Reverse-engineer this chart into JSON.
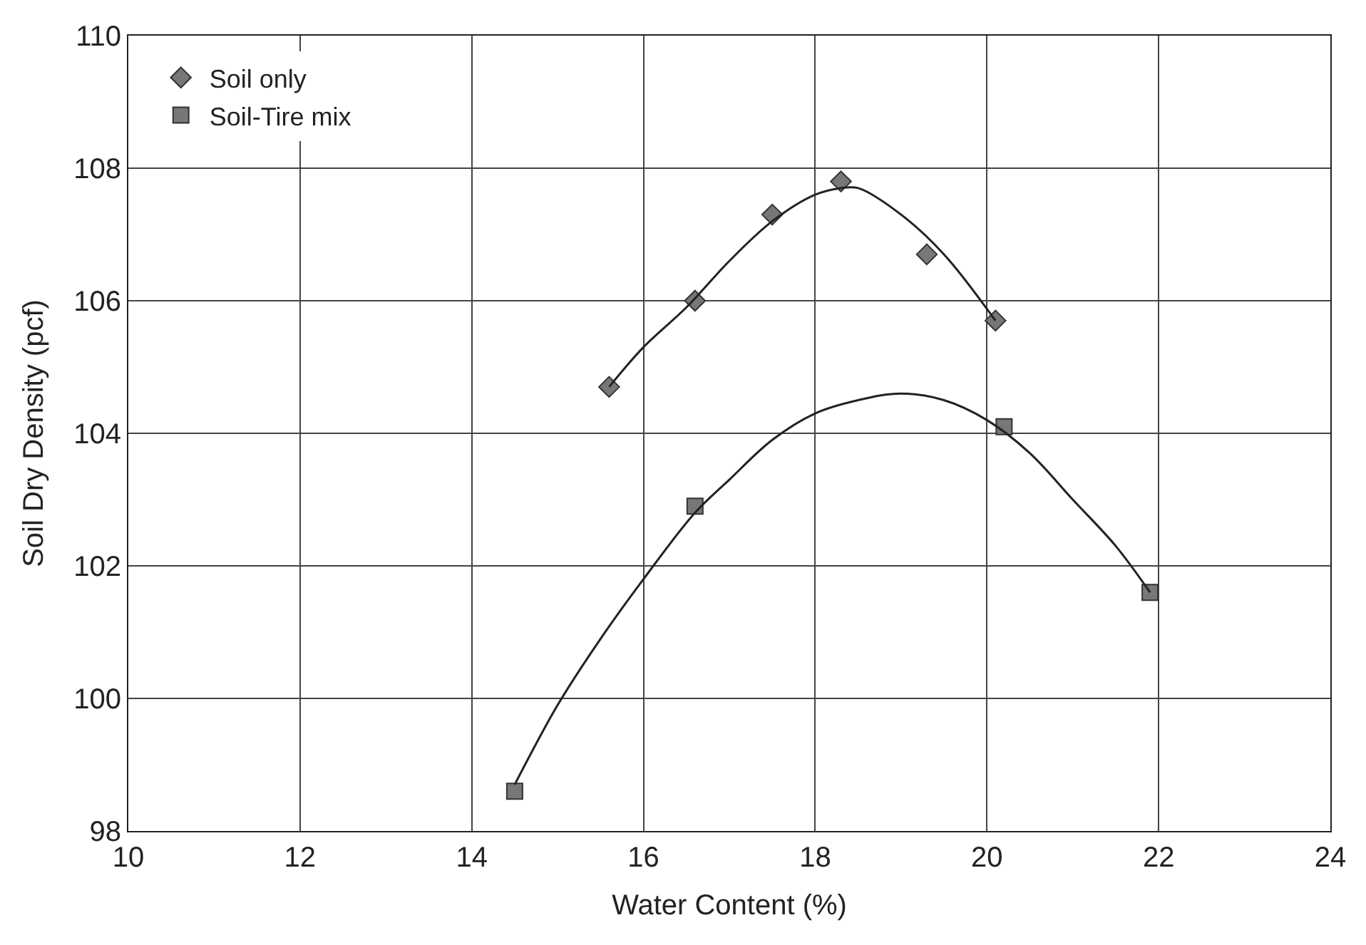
{
  "chart_data": {
    "type": "scatter",
    "xlabel": "Water Content (%)",
    "ylabel": "Soil Dry Density (pcf)",
    "xlim": [
      10,
      24
    ],
    "xticks": [
      10,
      12,
      14,
      16,
      18,
      20,
      22,
      24
    ],
    "ylim": [
      98,
      110
    ],
    "yticks": [
      98,
      100,
      102,
      104,
      106,
      108,
      110
    ],
    "grid": true,
    "legend": "top left",
    "series": [
      {
        "name": "Soil only",
        "color": "#777777",
        "marker": "diamond",
        "x": [
          15.6,
          16.6,
          17.5,
          18.3,
          19.3,
          20.1
        ],
        "values": [
          104.7,
          106.0,
          107.3,
          107.8,
          106.7,
          105.7
        ]
      },
      {
        "name": "Soil-Tire mix",
        "color": "#777777",
        "marker": "square",
        "x": [
          14.5,
          16.6,
          20.2,
          21.9
        ],
        "values": [
          98.6,
          102.9,
          104.1,
          101.6
        ]
      },
      {
        "type": "line",
        "color": "#222222",
        "marker": "none",
        "x": [
          15.6,
          16.0,
          16.5,
          17.0,
          17.5,
          18.0,
          18.3,
          18.5,
          19.0,
          19.5,
          20.1
        ],
        "values": [
          104.7,
          105.3,
          105.9,
          106.6,
          107.2,
          107.6,
          107.7,
          107.7,
          107.3,
          106.7,
          105.7
        ]
      },
      {
        "type": "line",
        "color": "#222222",
        "marker": "none",
        "x": [
          14.5,
          15.0,
          15.5,
          16.0,
          16.6,
          17.0,
          17.5,
          18.0,
          18.5,
          19.0,
          19.5,
          20.0,
          20.5,
          21.0,
          21.5,
          21.9
        ],
        "values": [
          98.7,
          99.9,
          100.9,
          101.8,
          102.8,
          103.3,
          103.9,
          104.3,
          104.5,
          104.6,
          104.5,
          104.2,
          103.7,
          103.0,
          102.3,
          101.6
        ]
      }
    ]
  }
}
